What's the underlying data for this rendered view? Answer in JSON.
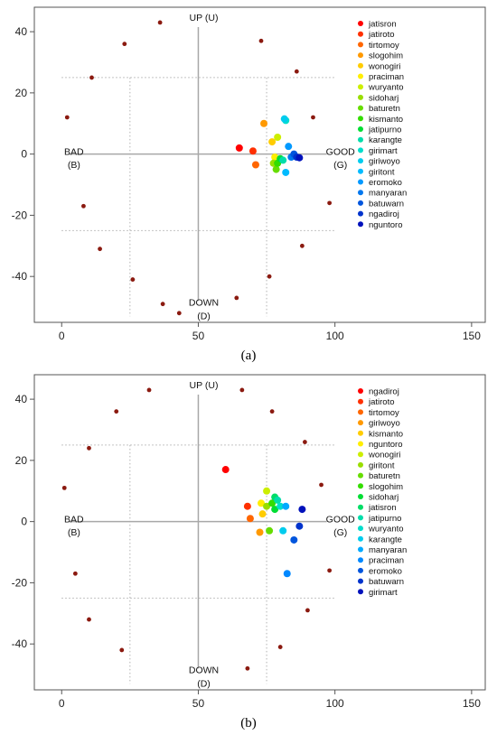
{
  "chart_data": [
    {
      "type": "scatter",
      "panel_label": "(a)",
      "xlim": [
        -10,
        155
      ],
      "ylim": [
        -55,
        48
      ],
      "x_ticks": [
        "0",
        "50",
        "100",
        "150"
      ],
      "y_ticks": [
        "-40",
        "-20",
        "0",
        "20",
        "40"
      ],
      "quadrant_labels": {
        "up": "UP (U)",
        "down_1": "DOWN",
        "down_2": "(D)",
        "bad_1": "BAD",
        "bad_2": "(B)",
        "good_1": "GOOD",
        "good_2": "(G)"
      },
      "boundary_points": [
        [
          36,
          43
        ],
        [
          23,
          36
        ],
        [
          11,
          25
        ],
        [
          2,
          12
        ],
        [
          8,
          -17
        ],
        [
          14,
          -31
        ],
        [
          26,
          -41
        ],
        [
          37,
          -49
        ],
        [
          43,
          -52
        ],
        [
          73,
          37
        ],
        [
          86,
          27
        ],
        [
          92,
          12
        ],
        [
          98,
          -16
        ],
        [
          88,
          -30
        ],
        [
          76,
          -40
        ],
        [
          64,
          -47
        ]
      ],
      "series": [
        {
          "name": "jatisron",
          "color": "#ff0000",
          "x": 65,
          "y": 2
        },
        {
          "name": "jatiroto",
          "color": "#ff3000",
          "x": 70,
          "y": 1
        },
        {
          "name": "tirtomoy",
          "color": "#ff6600",
          "x": 71,
          "y": -3.5
        },
        {
          "name": "slogohim",
          "color": "#ff9900",
          "x": 74,
          "y": 10
        },
        {
          "name": "wonogiri",
          "color": "#ffcc00",
          "x": 77,
          "y": 4
        },
        {
          "name": "praciman",
          "color": "#ffee00",
          "x": 78,
          "y": -1
        },
        {
          "name": "wuryanto",
          "color": "#ccee00",
          "x": 79,
          "y": 5.5
        },
        {
          "name": "sidoharj",
          "color": "#99dd00",
          "x": 77.5,
          "y": -3
        },
        {
          "name": "baturetn",
          "color": "#66dd00",
          "x": 78.5,
          "y": -5
        },
        {
          "name": "kismanto",
          "color": "#33dd00",
          "x": 79,
          "y": -3
        },
        {
          "name": "jatipurno",
          "color": "#00dd33",
          "x": 80,
          "y": -1.5
        },
        {
          "name": "karangte",
          "color": "#00ddaa",
          "x": 81,
          "y": -2
        },
        {
          "name": "girimart",
          "color": "#00ddcc",
          "x": 82,
          "y": 11
        },
        {
          "name": "giriwoyo",
          "color": "#00ccee",
          "x": 81.5,
          "y": 11.5
        },
        {
          "name": "giritont",
          "color": "#00bbff",
          "x": 82,
          "y": -6
        },
        {
          "name": "eromoko",
          "color": "#0099ff",
          "x": 83,
          "y": 2.5
        },
        {
          "name": "manyaran",
          "color": "#0077ee",
          "x": 84,
          "y": -1
        },
        {
          "name": "batuwarn",
          "color": "#0055dd",
          "x": 85,
          "y": 0
        },
        {
          "name": "ngadiroj",
          "color": "#0033cc",
          "x": 86,
          "y": -1
        },
        {
          "name": "nguntoro",
          "color": "#0011bb",
          "x": 87,
          "y": -1.2
        }
      ]
    },
    {
      "type": "scatter",
      "panel_label": "(b)",
      "xlim": [
        -10,
        155
      ],
      "ylim": [
        -55,
        48
      ],
      "x_ticks": [
        "0",
        "50",
        "100",
        "150"
      ],
      "y_ticks": [
        "-40",
        "-20",
        "0",
        "20",
        "40"
      ],
      "quadrant_labels": {
        "up": "UP (U)",
        "down_1": "DOWN",
        "down_2": "(D)",
        "bad_1": "BAD",
        "bad_2": "(B)",
        "good_1": "GOOD",
        "good_2": "(G)"
      },
      "boundary_points": [
        [
          32,
          43
        ],
        [
          20,
          36
        ],
        [
          10,
          24
        ],
        [
          1,
          11
        ],
        [
          5,
          -17
        ],
        [
          10,
          -32
        ],
        [
          22,
          -42
        ],
        [
          66,
          43
        ],
        [
          77,
          36
        ],
        [
          89,
          26
        ],
        [
          95,
          12
        ],
        [
          98,
          -16
        ],
        [
          90,
          -29
        ],
        [
          80,
          -41
        ],
        [
          68,
          -48
        ]
      ],
      "series": [
        {
          "name": "ngadiroj",
          "color": "#ff0000",
          "x": 60,
          "y": 17
        },
        {
          "name": "jatiroto",
          "color": "#ff3000",
          "x": 68,
          "y": 5
        },
        {
          "name": "tirtomoy",
          "color": "#ff6600",
          "x": 69,
          "y": 1
        },
        {
          "name": "giriwoyo",
          "color": "#ff9900",
          "x": 72.5,
          "y": -3.5
        },
        {
          "name": "kismanto",
          "color": "#ffcc00",
          "x": 73.5,
          "y": 2.5
        },
        {
          "name": "nguntoro",
          "color": "#ffee00",
          "x": 73,
          "y": 6
        },
        {
          "name": "wonogiri",
          "color": "#ccee00",
          "x": 75,
          "y": 10
        },
        {
          "name": "giritont",
          "color": "#99dd00",
          "x": 75,
          "y": 5
        },
        {
          "name": "baturetn",
          "color": "#66dd00",
          "x": 76,
          "y": -3
        },
        {
          "name": "slogohim",
          "color": "#33dd00",
          "x": 77,
          "y": 6
        },
        {
          "name": "sidoharj",
          "color": "#00dd33",
          "x": 78,
          "y": 4
        },
        {
          "name": "jatisron",
          "color": "#00dd66",
          "x": 78,
          "y": 8
        },
        {
          "name": "jatipurno",
          "color": "#00ddaa",
          "x": 79,
          "y": 7
        },
        {
          "name": "wuryanto",
          "color": "#00ddcc",
          "x": 80,
          "y": 5
        },
        {
          "name": "karangte",
          "color": "#00ccee",
          "x": 81,
          "y": -3
        },
        {
          "name": "manyaran",
          "color": "#00aaff",
          "x": 82,
          "y": 5
        },
        {
          "name": "praciman",
          "color": "#0088ff",
          "x": 82.5,
          "y": -17
        },
        {
          "name": "eromoko",
          "color": "#0055dd",
          "x": 85,
          "y": -6
        },
        {
          "name": "batuwarn",
          "color": "#0033cc",
          "x": 87,
          "y": -1.5
        },
        {
          "name": "girimart",
          "color": "#0011bb",
          "x": 88,
          "y": 4
        }
      ]
    }
  ]
}
